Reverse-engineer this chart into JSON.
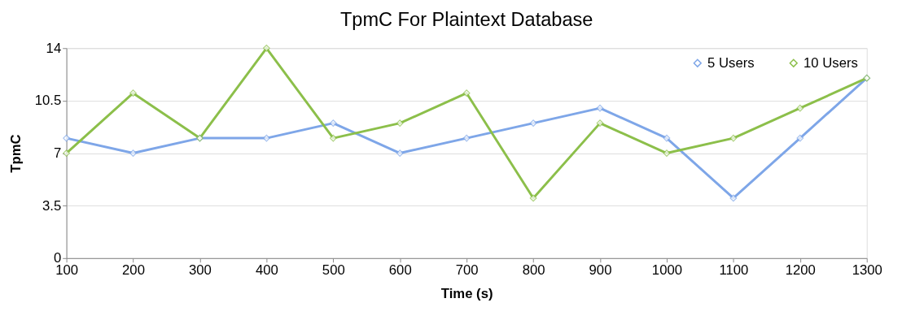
{
  "chart_data": {
    "type": "line",
    "title": "TpmC For Plaintext Database",
    "xlabel": "Time (s)",
    "ylabel": "TpmC",
    "x": [
      100,
      200,
      300,
      400,
      500,
      600,
      700,
      800,
      900,
      1000,
      1100,
      1200,
      1300
    ],
    "series": [
      {
        "name": "5 Users",
        "color": "#7ea6e8",
        "values": [
          8,
          7,
          8,
          8,
          9,
          7,
          8,
          9,
          10,
          8,
          4,
          8,
          12
        ]
      },
      {
        "name": "10 Users",
        "color": "#8cbf4a",
        "values": [
          7,
          11,
          8,
          14,
          8,
          9,
          11,
          4,
          9,
          7,
          8,
          10,
          12
        ]
      }
    ],
    "xlim": [
      100,
      1300
    ],
    "xticks": [
      100,
      200,
      300,
      400,
      500,
      600,
      700,
      800,
      900,
      1000,
      1100,
      1200,
      1300
    ],
    "ylim": [
      0,
      14
    ],
    "yticks": [
      0,
      3.5,
      7,
      10.5,
      14
    ],
    "grid": "y",
    "legend": "top right",
    "marker": "diamond",
    "line_style": "solid"
  }
}
